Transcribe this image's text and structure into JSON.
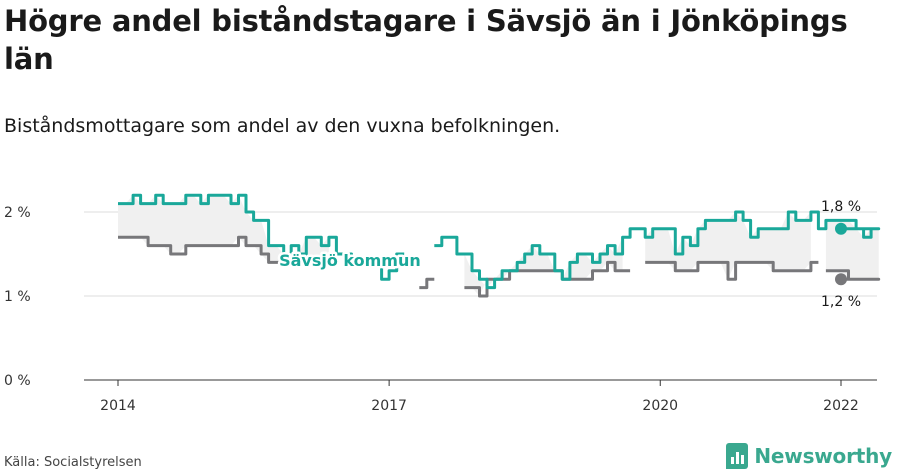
{
  "header": {
    "title": "Högre andel biståndstagare i Sävsjö än i Jönköpings län",
    "subtitle": "Biståndsmottagare som andel av den vuxna befolkningen."
  },
  "footer": {
    "source": "Källa: Socialstyrelsen",
    "brand": "Newsworthy"
  },
  "colors": {
    "kommun": "#1aa89a",
    "lan": "#77777a",
    "band": "#f0f0f0",
    "grid": "#dddddd",
    "brand": "#3aa88f"
  },
  "chart_data": {
    "type": "line",
    "x_unit": "month",
    "xlim": [
      "2014-01",
      "2022-01"
    ],
    "ylim": [
      0,
      2.5
    ],
    "yticks": [
      0,
      1,
      2
    ],
    "ytick_labels": [
      "0 %",
      "1 %",
      "2 %"
    ],
    "xticks": [
      "2014",
      "2017",
      "2020",
      "2022"
    ],
    "grid": true,
    "fill_between_series": true,
    "series": [
      {
        "name": "Sävsjö kommun",
        "label": "Sävsjö kommun",
        "end_label": "1,8 %",
        "start": "2014-01",
        "values": [
          2.1,
          2.1,
          2.2,
          2.1,
          2.1,
          2.2,
          2.1,
          2.1,
          2.1,
          2.2,
          2.2,
          2.1,
          2.2,
          2.2,
          2.2,
          2.1,
          2.2,
          2.0,
          1.9,
          1.9,
          1.6,
          1.6,
          1.5,
          1.6,
          1.5,
          1.7,
          1.7,
          1.6,
          1.7,
          1.5,
          1.5,
          1.4,
          1.4,
          1.4,
          1.4,
          1.2,
          1.3,
          1.5,
          null,
          null,
          null,
          null,
          1.6,
          1.7,
          1.7,
          1.5,
          1.5,
          1.3,
          1.2,
          1.1,
          1.2,
          1.3,
          1.3,
          1.4,
          1.5,
          1.6,
          1.5,
          1.5,
          1.3,
          1.2,
          1.4,
          1.5,
          1.5,
          1.4,
          1.5,
          1.6,
          1.5,
          1.7,
          1.8,
          1.8,
          1.7,
          1.8,
          1.8,
          1.8,
          1.5,
          1.7,
          1.6,
          1.8,
          1.9,
          1.9,
          1.9,
          1.9,
          2.0,
          1.9,
          1.7,
          1.8,
          1.8,
          1.8,
          1.8,
          2.0,
          1.9,
          1.9,
          2.0,
          1.8,
          1.9,
          1.9,
          1.9,
          1.9,
          1.8,
          1.7,
          1.8,
          1.8
        ]
      },
      {
        "name": "Jönköpings län",
        "end_label": "1,2 %",
        "start": "2014-01",
        "values": [
          1.7,
          1.7,
          1.7,
          1.7,
          1.6,
          1.6,
          1.6,
          1.5,
          1.5,
          1.6,
          1.6,
          1.6,
          1.6,
          1.6,
          1.6,
          1.6,
          1.7,
          1.6,
          1.6,
          1.5,
          1.4,
          1.4,
          1.4,
          null,
          1.4,
          1.4,
          1.4,
          1.4,
          1.4,
          null,
          null,
          null,
          null,
          null,
          null,
          null,
          null,
          null,
          null,
          null,
          1.1,
          1.2,
          null,
          null,
          null,
          null,
          1.1,
          1.1,
          1.0,
          1.2,
          1.2,
          1.2,
          1.3,
          1.3,
          1.3,
          1.3,
          1.3,
          1.3,
          1.3,
          1.2,
          1.2,
          1.2,
          1.2,
          1.3,
          1.3,
          1.4,
          1.3,
          1.3,
          null,
          null,
          1.4,
          1.4,
          1.4,
          1.4,
          1.3,
          1.3,
          1.3,
          1.4,
          1.4,
          1.4,
          1.4,
          1.2,
          1.4,
          1.4,
          1.4,
          1.4,
          1.4,
          1.3,
          1.3,
          1.3,
          1.3,
          1.3,
          1.4,
          null,
          1.3,
          1.3,
          1.3,
          1.2,
          1.2,
          1.2,
          1.2,
          1.2
        ]
      }
    ]
  }
}
